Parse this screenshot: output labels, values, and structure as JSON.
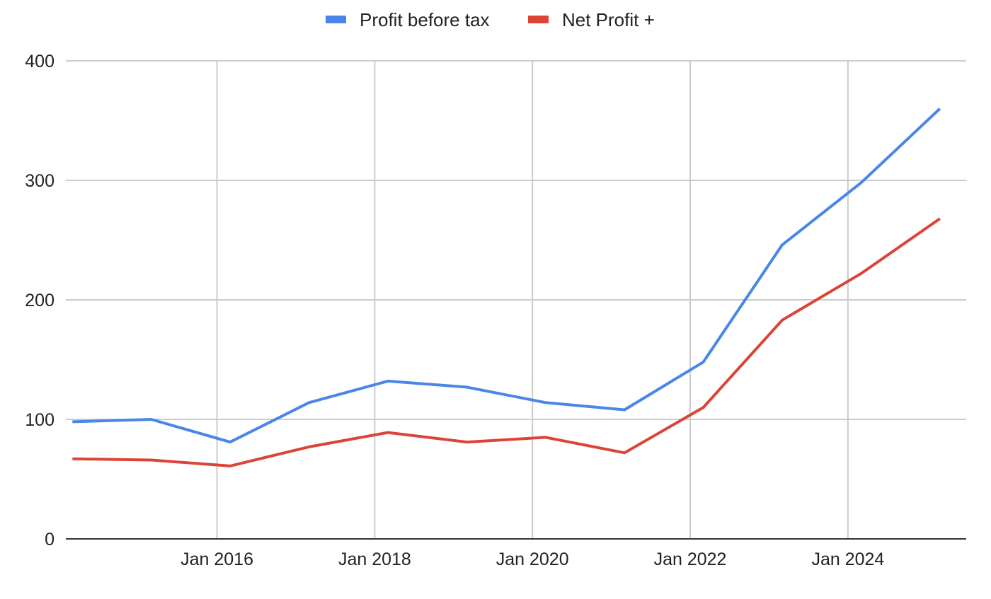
{
  "chart_data": {
    "type": "line",
    "title": "",
    "xlabel": "",
    "ylabel": "",
    "ylim": [
      0,
      400
    ],
    "xlim": [
      "2014-02",
      "2025-07"
    ],
    "y_ticks": [
      0,
      100,
      200,
      300,
      400
    ],
    "x_ticks": [
      {
        "date": "2016-01",
        "label": "Jan 2016"
      },
      {
        "date": "2018-01",
        "label": "Jan 2018"
      },
      {
        "date": "2020-01",
        "label": "Jan 2020"
      },
      {
        "date": "2022-01",
        "label": "Jan 2022"
      },
      {
        "date": "2024-01",
        "label": "Jan 2024"
      }
    ],
    "grid": true,
    "legend_position": "top-center",
    "x": [
      "2014-03",
      "2015-03",
      "2016-03",
      "2017-03",
      "2018-03",
      "2019-03",
      "2020-03",
      "2021-03",
      "2022-03",
      "2023-03",
      "2024-03",
      "2025-03"
    ],
    "series": [
      {
        "name": "Profit before tax",
        "color": "#4a86e8",
        "values": [
          98,
          100,
          81,
          114,
          132,
          127,
          114,
          108,
          148,
          246,
          298,
          360
        ]
      },
      {
        "name": "Net Profit +",
        "color": "#db4437",
        "values": [
          67,
          66,
          61,
          77,
          89,
          81,
          85,
          72,
          110,
          183,
          222,
          268
        ]
      }
    ]
  }
}
